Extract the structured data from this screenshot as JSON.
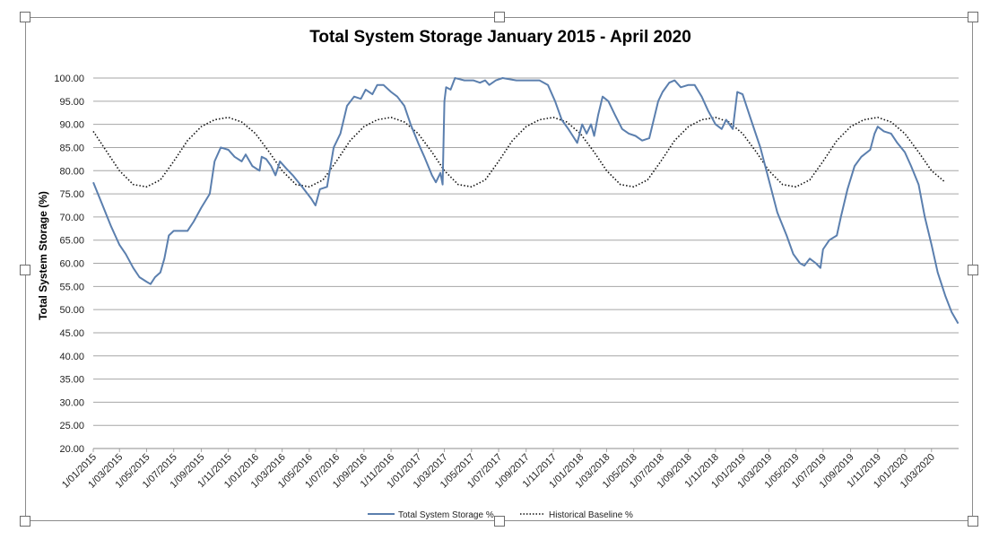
{
  "chart_data": {
    "type": "line",
    "title": "Total System Storage January 2015 - April 2020",
    "xlabel": "",
    "ylabel": "Total System Storage (%)",
    "ylim": [
      20,
      100
    ],
    "yticks": [
      "20.00",
      "25.00",
      "30.00",
      "35.00",
      "40.00",
      "45.00",
      "50.00",
      "55.00",
      "60.00",
      "65.00",
      "70.00",
      "75.00",
      "80.00",
      "85.00",
      "90.00",
      "95.00",
      "100.00"
    ],
    "xticks": [
      "1/01/2015",
      "1/03/2015",
      "1/05/2015",
      "1/07/2015",
      "1/09/2015",
      "1/11/2015",
      "1/01/2016",
      "1/03/2016",
      "1/05/2016",
      "1/07/2016",
      "1/09/2016",
      "1/11/2016",
      "1/01/2017",
      "1/03/2017",
      "1/05/2017",
      "1/07/2017",
      "1/09/2017",
      "1/11/2017",
      "1/01/2018",
      "1/03/2018",
      "1/05/2018",
      "1/07/2018",
      "1/09/2018",
      "1/11/2018",
      "1/01/2019",
      "1/03/2019",
      "1/05/2019",
      "1/07/2019",
      "1/09/2019",
      "1/11/2019",
      "1/01/2020",
      "1/03/2020"
    ],
    "grid": true,
    "legend_position": "bottom",
    "series": [
      {
        "name": "Total System Storage %",
        "color": "#5b7fae",
        "style": "solid",
        "points": [
          [
            "2015-01-01",
            77.5
          ],
          [
            "2015-01-20",
            73
          ],
          [
            "2015-02-10",
            68
          ],
          [
            "2015-03-01",
            64
          ],
          [
            "2015-03-15",
            62
          ],
          [
            "2015-04-01",
            59
          ],
          [
            "2015-04-15",
            57
          ],
          [
            "2015-05-01",
            56
          ],
          [
            "2015-05-10",
            55.5
          ],
          [
            "2015-05-20",
            57
          ],
          [
            "2015-06-01",
            58
          ],
          [
            "2015-06-10",
            61
          ],
          [
            "2015-06-20",
            66
          ],
          [
            "2015-07-01",
            67
          ],
          [
            "2015-07-15",
            67
          ],
          [
            "2015-08-01",
            67
          ],
          [
            "2015-08-15",
            69
          ],
          [
            "2015-09-01",
            72
          ],
          [
            "2015-09-20",
            75
          ],
          [
            "2015-10-01",
            82
          ],
          [
            "2015-10-15",
            85
          ],
          [
            "2015-11-01",
            84.5
          ],
          [
            "2015-11-15",
            83
          ],
          [
            "2015-12-01",
            82
          ],
          [
            "2015-12-10",
            83.5
          ],
          [
            "2015-12-25",
            81
          ],
          [
            "2016-01-10",
            80
          ],
          [
            "2016-01-15",
            83
          ],
          [
            "2016-01-25",
            82.5
          ],
          [
            "2016-02-05",
            81
          ],
          [
            "2016-02-15",
            79
          ],
          [
            "2016-02-25",
            82
          ],
          [
            "2016-03-10",
            80.5
          ],
          [
            "2016-03-25",
            79
          ],
          [
            "2016-04-15",
            76.5
          ],
          [
            "2016-05-05",
            74
          ],
          [
            "2016-05-15",
            72.5
          ],
          [
            "2016-05-25",
            76
          ],
          [
            "2016-06-10",
            76.5
          ],
          [
            "2016-06-25",
            85
          ],
          [
            "2016-07-10",
            88
          ],
          [
            "2016-07-25",
            94
          ],
          [
            "2016-08-10",
            96
          ],
          [
            "2016-08-25",
            95.5
          ],
          [
            "2016-09-05",
            97.5
          ],
          [
            "2016-09-20",
            96.5
          ],
          [
            "2016-10-01",
            98.5
          ],
          [
            "2016-10-15",
            98.5
          ],
          [
            "2016-11-01",
            97
          ],
          [
            "2016-11-15",
            96
          ],
          [
            "2016-12-01",
            94
          ],
          [
            "2016-12-15",
            90
          ],
          [
            "2017-01-01",
            86
          ],
          [
            "2017-01-15",
            83
          ],
          [
            "2017-02-01",
            79
          ],
          [
            "2017-02-10",
            77.5
          ],
          [
            "2017-02-20",
            79.5
          ],
          [
            "2017-02-25",
            77
          ],
          [
            "2017-03-01",
            95
          ],
          [
            "2017-03-05",
            98
          ],
          [
            "2017-03-15",
            97.5
          ],
          [
            "2017-03-25",
            100
          ],
          [
            "2017-04-15",
            99.5
          ],
          [
            "2017-05-05",
            99.5
          ],
          [
            "2017-05-20",
            99
          ],
          [
            "2017-06-01",
            99.5
          ],
          [
            "2017-06-10",
            98.5
          ],
          [
            "2017-06-25",
            99.5
          ],
          [
            "2017-07-10",
            100
          ],
          [
            "2017-08-10",
            99.5
          ],
          [
            "2017-09-10",
            99.5
          ],
          [
            "2017-10-01",
            99.5
          ],
          [
            "2017-10-20",
            98.5
          ],
          [
            "2017-11-05",
            95
          ],
          [
            "2017-11-20",
            91
          ],
          [
            "2017-12-05",
            89
          ],
          [
            "2017-12-25",
            86
          ],
          [
            "2018-01-05",
            90
          ],
          [
            "2018-01-15",
            88
          ],
          [
            "2018-01-25",
            90
          ],
          [
            "2018-02-01",
            87.5
          ],
          [
            "2018-02-10",
            92
          ],
          [
            "2018-02-20",
            96
          ],
          [
            "2018-03-05",
            95
          ],
          [
            "2018-03-20",
            92
          ],
          [
            "2018-04-05",
            89
          ],
          [
            "2018-04-20",
            88
          ],
          [
            "2018-05-05",
            87.5
          ],
          [
            "2018-05-20",
            86.5
          ],
          [
            "2018-06-05",
            87
          ],
          [
            "2018-06-15",
            91
          ],
          [
            "2018-06-25",
            95
          ],
          [
            "2018-07-05",
            97
          ],
          [
            "2018-07-20",
            99
          ],
          [
            "2018-08-01",
            99.5
          ],
          [
            "2018-08-15",
            98
          ],
          [
            "2018-09-01",
            98.5
          ],
          [
            "2018-09-15",
            98.5
          ],
          [
            "2018-10-01",
            96
          ],
          [
            "2018-10-15",
            93
          ],
          [
            "2018-11-01",
            90
          ],
          [
            "2018-11-15",
            89
          ],
          [
            "2018-11-25",
            91
          ],
          [
            "2018-12-10",
            89
          ],
          [
            "2018-12-20",
            97
          ],
          [
            "2019-01-01",
            96.5
          ],
          [
            "2019-01-20",
            91
          ],
          [
            "2019-02-10",
            85
          ],
          [
            "2019-03-01",
            78
          ],
          [
            "2019-03-20",
            71
          ],
          [
            "2019-04-10",
            66
          ],
          [
            "2019-04-25",
            62
          ],
          [
            "2019-05-10",
            60
          ],
          [
            "2019-05-20",
            59.5
          ],
          [
            "2019-06-01",
            61
          ],
          [
            "2019-06-15",
            60
          ],
          [
            "2019-06-25",
            59
          ],
          [
            "2019-07-01",
            63
          ],
          [
            "2019-07-15",
            65
          ],
          [
            "2019-08-01",
            66
          ],
          [
            "2019-08-10",
            70
          ],
          [
            "2019-08-25",
            76
          ],
          [
            "2019-09-10",
            81
          ],
          [
            "2019-09-25",
            83
          ],
          [
            "2019-10-15",
            84.5
          ],
          [
            "2019-10-25",
            88
          ],
          [
            "2019-11-01",
            89.5
          ],
          [
            "2019-11-15",
            88.5
          ],
          [
            "2019-12-01",
            88
          ],
          [
            "2019-12-15",
            86
          ],
          [
            "2020-01-01",
            84
          ],
          [
            "2020-01-15",
            81
          ],
          [
            "2020-02-01",
            77
          ],
          [
            "2020-02-15",
            70
          ],
          [
            "2020-03-01",
            64
          ],
          [
            "2020-03-15",
            58
          ],
          [
            "2020-04-01",
            53
          ],
          [
            "2020-04-15",
            49.5
          ],
          [
            "2020-04-30",
            47
          ]
        ]
      },
      {
        "name": "Historical Baseline %",
        "color": "#111111",
        "style": "dotted",
        "points": [
          [
            "2015-01-01",
            88.5
          ],
          [
            "2015-02-01",
            84
          ],
          [
            "2015-03-01",
            80
          ],
          [
            "2015-04-01",
            77
          ],
          [
            "2015-05-01",
            76.5
          ],
          [
            "2015-06-01",
            78
          ],
          [
            "2015-07-01",
            82
          ],
          [
            "2015-08-01",
            86.5
          ],
          [
            "2015-09-01",
            89.5
          ],
          [
            "2015-10-01",
            91
          ],
          [
            "2015-11-01",
            91.5
          ],
          [
            "2015-12-01",
            90.5
          ],
          [
            "2016-01-01",
            88
          ],
          [
            "2016-02-01",
            84
          ],
          [
            "2016-03-01",
            80
          ],
          [
            "2016-04-01",
            77
          ],
          [
            "2016-05-01",
            76.5
          ],
          [
            "2016-06-01",
            78
          ],
          [
            "2016-07-01",
            82
          ],
          [
            "2016-08-01",
            86.5
          ],
          [
            "2016-09-01",
            89.5
          ],
          [
            "2016-10-01",
            91
          ],
          [
            "2016-11-01",
            91.5
          ],
          [
            "2016-12-01",
            90.5
          ],
          [
            "2017-01-01",
            88
          ],
          [
            "2017-02-01",
            84
          ],
          [
            "2017-03-01",
            80
          ],
          [
            "2017-04-01",
            77
          ],
          [
            "2017-05-01",
            76.5
          ],
          [
            "2017-06-01",
            78
          ],
          [
            "2017-07-01",
            82
          ],
          [
            "2017-08-01",
            86.5
          ],
          [
            "2017-09-01",
            89.5
          ],
          [
            "2017-10-01",
            91
          ],
          [
            "2017-11-01",
            91.5
          ],
          [
            "2017-12-01",
            90.5
          ],
          [
            "2018-01-01",
            88
          ],
          [
            "2018-02-01",
            84
          ],
          [
            "2018-03-01",
            80
          ],
          [
            "2018-04-01",
            77
          ],
          [
            "2018-05-01",
            76.5
          ],
          [
            "2018-06-01",
            78
          ],
          [
            "2018-07-01",
            82
          ],
          [
            "2018-08-01",
            86.5
          ],
          [
            "2018-09-01",
            89.5
          ],
          [
            "2018-10-01",
            91
          ],
          [
            "2018-11-01",
            91.5
          ],
          [
            "2018-12-01",
            90.5
          ],
          [
            "2019-01-01",
            88
          ],
          [
            "2019-02-01",
            84
          ],
          [
            "2019-03-01",
            80
          ],
          [
            "2019-04-01",
            77
          ],
          [
            "2019-05-01",
            76.5
          ],
          [
            "2019-06-01",
            78
          ],
          [
            "2019-07-01",
            82
          ],
          [
            "2019-08-01",
            86.5
          ],
          [
            "2019-09-01",
            89.5
          ],
          [
            "2019-10-01",
            91
          ],
          [
            "2019-11-01",
            91.5
          ],
          [
            "2019-12-01",
            90.5
          ],
          [
            "2020-01-01",
            88
          ],
          [
            "2020-02-01",
            84
          ],
          [
            "2020-03-01",
            80
          ],
          [
            "2020-04-01",
            77.5
          ]
        ]
      }
    ]
  }
}
